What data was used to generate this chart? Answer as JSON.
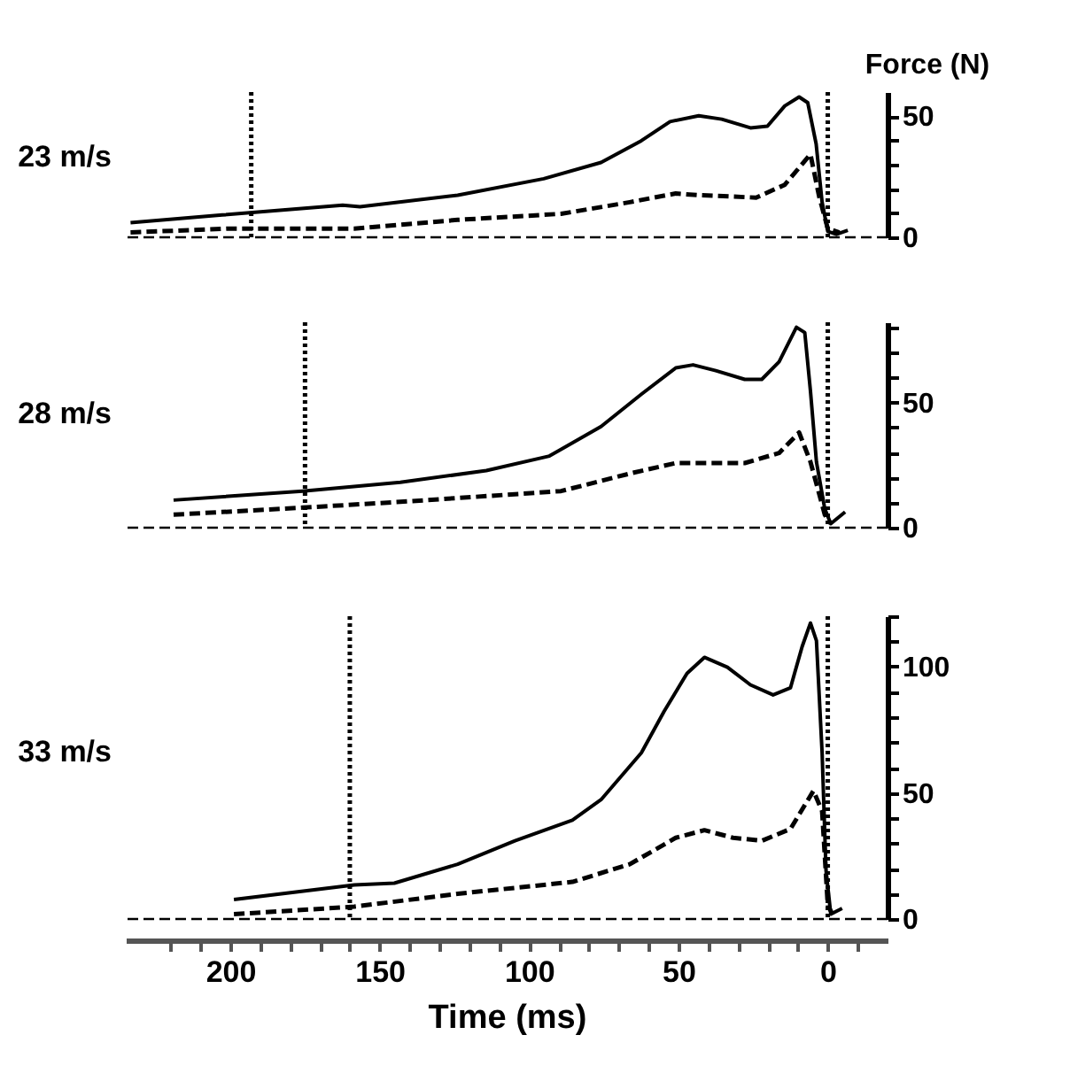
{
  "chart_data": [
    {
      "type": "line",
      "ylabel": "Force (N)",
      "annotations": [
        "23 m/s"
      ],
      "tick_labels": "y",
      "grid": false,
      "legend": false,
      "marker": "none",
      "xlim": [
        235,
        -20
      ],
      "ylim": [
        0,
        60
      ],
      "yticks": [
        0,
        {
          "value": 10,
          "label": null
        },
        {
          "value": 20,
          "label": null
        },
        {
          "value": 30,
          "label": null
        },
        {
          "value": 40,
          "label": null
        },
        50
      ],
      "ref_lines": [
        {
          "axis": "x",
          "value": 0,
          "line_style": "dotted",
          "color": "#000000"
        },
        {
          "axis": "x",
          "value": 193,
          "line_style": "dotted",
          "color": "#000000"
        },
        {
          "axis": "y",
          "value": 0,
          "line_style": "dashed",
          "color": "#000000"
        }
      ],
      "series": [
        {
          "color": "#000000",
          "line_style": "solid",
          "x": [
            233.4,
            202.7,
            162.4,
            156.6,
            123.9,
            95.1,
            75.9,
            62.4,
            52.8,
            43.2,
            35.5,
            25.9,
            20.2,
            14.4,
            9.6,
            6.7,
            3.9,
            1.9,
            0,
            -2.9,
            -6.7
          ],
          "values": [
            6.0,
            9.2,
            13.3,
            12.6,
            17.4,
            24.2,
            30.9,
            39.9,
            47.8,
            50.2,
            48.8,
            45.2,
            45.9,
            54.3,
            58,
            55.6,
            38.6,
            14.5,
            2.4,
            1.2,
            2.9
          ]
        },
        {
          "color": "#000000",
          "line_style": "dashed",
          "x": [
            233.4,
            200.7,
            158.5,
            123.9,
            89.3,
            66.3,
            50.9,
            43.2,
            24.0,
            14.4,
            5.8,
            2.9,
            0,
            -3.9
          ],
          "values": [
            2,
            3.6,
            3.6,
            7.2,
            9.7,
            14.5,
            18.1,
            17.4,
            16.4,
            21.7,
            34.3,
            16.9,
            3.6,
            2
          ]
        }
      ]
    },
    {
      "type": "line",
      "annotations": [
        "28 m/s"
      ],
      "tick_labels": "y",
      "grid": false,
      "legend": false,
      "marker": "none",
      "xlim": [
        235,
        -20
      ],
      "ylim": [
        0,
        82
      ],
      "yticks": [
        0,
        {
          "value": 10,
          "label": null
        },
        {
          "value": 20,
          "label": null
        },
        {
          "value": 30,
          "label": null
        },
        {
          "value": 40,
          "label": null
        },
        50,
        {
          "value": 60,
          "label": null
        },
        {
          "value": 70,
          "label": null
        },
        {
          "value": 80,
          "label": null
        }
      ],
      "ref_lines": [
        {
          "axis": "x",
          "value": 0,
          "line_style": "dotted",
          "color": "#000000"
        },
        {
          "axis": "x",
          "value": 175,
          "line_style": "dotted",
          "color": "#000000"
        },
        {
          "axis": "y",
          "value": 0,
          "line_style": "dashed",
          "color": "#000000"
        }
      ],
      "series": [
        {
          "color": "#000000",
          "line_style": "solid",
          "x": [
            219.0,
            175.8,
            143.1,
            114.3,
            93.2,
            75.9,
            62.4,
            50.9,
            45.1,
            37.5,
            27.8,
            22.1,
            16.3,
            10.5,
            7.7,
            5.8,
            3.8,
            1.0,
            -1.0,
            -5.8
          ],
          "values": [
            11.0,
            14.6,
            18.1,
            22.8,
            28.6,
            40.4,
            53.3,
            63.8,
            65.0,
            62.7,
            59.2,
            59.2,
            66.2,
            80,
            77.9,
            54.5,
            26.3,
            7.5,
            1.6,
            6.3
          ]
        },
        {
          "color": "#000000",
          "line_style": "dashed",
          "x": [
            219.0,
            175.8,
            143.1,
            89.3,
            66.3,
            50.9,
            27.8,
            16.3,
            9.6,
            5.8,
            1.0,
            -1.0
          ],
          "values": [
            5.2,
            8.0,
            10.3,
            14.6,
            21.6,
            25.8,
            25.8,
            29.8,
            38.0,
            26.3,
            5.2,
            1.6
          ]
        }
      ]
    },
    {
      "type": "line",
      "xlabel": "Time (ms)",
      "annotations": [
        "33 m/s"
      ],
      "grid": false,
      "legend": false,
      "marker": "none",
      "xlim": [
        235,
        -20
      ],
      "ylim": [
        0,
        120
      ],
      "xticks": [
        {
          "value": 220,
          "label": null
        },
        {
          "value": 210,
          "label": null
        },
        200,
        {
          "value": 190,
          "label": null
        },
        {
          "value": 180,
          "label": null
        },
        {
          "value": 170,
          "label": null
        },
        {
          "value": 160,
          "label": null
        },
        150,
        {
          "value": 140,
          "label": null
        },
        {
          "value": 130,
          "label": null
        },
        {
          "value": 120,
          "label": null
        },
        {
          "value": 110,
          "label": null
        },
        100,
        {
          "value": 90,
          "label": null
        },
        {
          "value": 80,
          "label": null
        },
        {
          "value": 70,
          "label": null
        },
        {
          "value": 60,
          "label": null
        },
        50,
        {
          "value": 40,
          "label": null
        },
        {
          "value": 30,
          "label": null
        },
        {
          "value": 20,
          "label": null
        },
        {
          "value": 10,
          "label": null
        },
        0,
        {
          "value": -10,
          "label": null
        }
      ],
      "yticks": [
        0,
        {
          "value": 10,
          "label": null
        },
        {
          "value": 20,
          "label": null
        },
        {
          "value": 30,
          "label": null
        },
        {
          "value": 40,
          "label": null
        },
        50,
        {
          "value": 60,
          "label": null
        },
        {
          "value": 70,
          "label": null
        },
        {
          "value": 80,
          "label": null
        },
        {
          "value": 90,
          "label": null
        },
        100,
        {
          "value": 110,
          "label": null
        },
        {
          "value": 120,
          "label": null
        }
      ],
      "ref_lines": [
        {
          "axis": "x",
          "value": 0,
          "line_style": "dotted",
          "color": "#000000"
        },
        {
          "axis": "x",
          "value": 160,
          "line_style": "dotted",
          "color": "#000000"
        },
        {
          "axis": "y",
          "value": 0,
          "line_style": "dashed",
          "color": "#000000"
        }
      ],
      "series": [
        {
          "color": "#000000",
          "line_style": "solid",
          "x": [
            198.8,
            158.5,
            145.1,
            123.9,
            104.7,
            85.5,
            75.9,
            62.4,
            54.8,
            47.1,
            41.3,
            33.6,
            25.9,
            18.3,
            12.5,
            8.6,
            5.8,
            3.8,
            1.9,
            0.6,
            -1.0,
            -4.8
          ],
          "values": [
            7.7,
            13.5,
            14.2,
            21.7,
            31.0,
            39.2,
            47.3,
            65.9,
            82.3,
            97.4,
            103.7,
            99.8,
            92.8,
            88.8,
            91.6,
            107.9,
            117.3,
            110.3,
            65.9,
            19.4,
            1.9,
            4.2
          ]
        },
        {
          "color": "#000000",
          "line_style": "dashed",
          "x": [
            198.8,
            158.5,
            123.9,
            85.5,
            66.3,
            50.9,
            41.3,
            31.7,
            22.1,
            12.5,
            4.8,
            1.9,
            0,
            -1.9
          ],
          "values": [
            1.9,
            4.9,
            10.0,
            14.7,
            21.7,
            32.2,
            35.2,
            32.2,
            31.0,
            35.7,
            50.8,
            42.7,
            5.4,
            1.2
          ]
        }
      ]
    }
  ]
}
